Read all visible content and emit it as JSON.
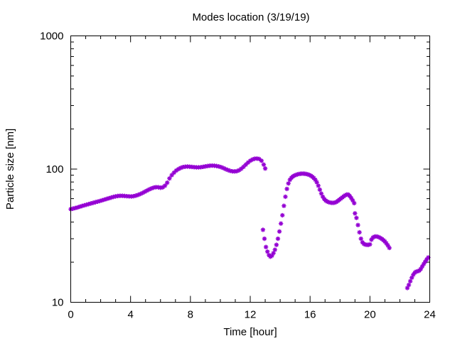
{
  "chart_data": {
    "type": "scatter",
    "title": "Modes location (3/19/19)",
    "xlabel": "Time [hour]",
    "ylabel": "Particle size [nm]",
    "xlim": [
      0,
      24
    ],
    "ylim": [
      10,
      1000
    ],
    "yscale": "log",
    "x_ticks": [
      "0",
      "4",
      "8",
      "12",
      "16",
      "20",
      "24"
    ],
    "y_ticks": [
      "10",
      "100",
      "1000"
    ],
    "grid": false,
    "legend": "none",
    "marker": "asterisk",
    "color": "#9400d3",
    "points": [
      [
        0.0,
        50
      ],
      [
        0.15,
        50.5
      ],
      [
        0.3,
        51
      ],
      [
        0.45,
        51.5
      ],
      [
        0.6,
        52.2
      ],
      [
        0.75,
        52.8
      ],
      [
        0.9,
        53.4
      ],
      [
        1.05,
        54
      ],
      [
        1.2,
        54.6
      ],
      [
        1.35,
        55.2
      ],
      [
        1.5,
        55.8
      ],
      [
        1.65,
        56.4
      ],
      [
        1.8,
        57
      ],
      [
        1.95,
        57.6
      ],
      [
        2.1,
        58.3
      ],
      [
        2.25,
        59
      ],
      [
        2.4,
        59.7
      ],
      [
        2.55,
        60.4
      ],
      [
        2.7,
        61.1
      ],
      [
        2.85,
        61.8
      ],
      [
        3.0,
        62.4
      ],
      [
        3.15,
        62.8
      ],
      [
        3.3,
        63
      ],
      [
        3.45,
        63
      ],
      [
        3.6,
        62.8
      ],
      [
        3.75,
        62.6
      ],
      [
        3.9,
        62.4
      ],
      [
        4.05,
        62.3
      ],
      [
        4.2,
        62.6
      ],
      [
        4.35,
        63.2
      ],
      [
        4.5,
        64
      ],
      [
        4.65,
        65
      ],
      [
        4.8,
        66.2
      ],
      [
        4.95,
        67.6
      ],
      [
        5.1,
        69
      ],
      [
        5.25,
        70.4
      ],
      [
        5.4,
        71.6
      ],
      [
        5.55,
        72.6
      ],
      [
        5.7,
        73.2
      ],
      [
        5.85,
        73
      ],
      [
        6.0,
        72.4
      ],
      [
        6.15,
        73
      ],
      [
        6.3,
        75
      ],
      [
        6.45,
        79
      ],
      [
        6.6,
        85
      ],
      [
        6.75,
        90
      ],
      [
        6.9,
        94
      ],
      [
        7.05,
        97.5
      ],
      [
        7.2,
        100
      ],
      [
        7.35,
        102
      ],
      [
        7.5,
        103.5
      ],
      [
        7.65,
        104.2
      ],
      [
        7.8,
        104.5
      ],
      [
        7.95,
        104.2
      ],
      [
        8.1,
        103.8
      ],
      [
        8.25,
        103.4
      ],
      [
        8.4,
        103.1
      ],
      [
        8.55,
        103
      ],
      [
        8.7,
        103.3
      ],
      [
        8.85,
        104
      ],
      [
        9.0,
        104.7
      ],
      [
        9.15,
        105.4
      ],
      [
        9.3,
        106
      ],
      [
        9.45,
        106.2
      ],
      [
        9.6,
        106
      ],
      [
        9.75,
        105.4
      ],
      [
        9.9,
        104.6
      ],
      [
        10.05,
        103.4
      ],
      [
        10.2,
        101.8
      ],
      [
        10.35,
        100
      ],
      [
        10.5,
        98.4
      ],
      [
        10.65,
        97
      ],
      [
        10.8,
        96.2
      ],
      [
        10.95,
        96
      ],
      [
        11.1,
        96.5
      ],
      [
        11.25,
        98
      ],
      [
        11.4,
        100.6
      ],
      [
        11.55,
        104
      ],
      [
        11.7,
        108
      ],
      [
        11.85,
        112
      ],
      [
        12.0,
        115.5
      ],
      [
        12.15,
        118
      ],
      [
        12.3,
        119.6
      ],
      [
        12.45,
        120
      ],
      [
        12.6,
        119
      ],
      [
        12.75,
        115.5
      ],
      [
        12.9,
        108
      ],
      [
        13.0,
        101
      ],
      [
        12.85,
        35
      ],
      [
        12.95,
        30
      ],
      [
        13.05,
        26
      ],
      [
        13.15,
        24
      ],
      [
        13.25,
        22.6
      ],
      [
        13.35,
        22
      ],
      [
        13.45,
        22.4
      ],
      [
        13.55,
        23.4
      ],
      [
        13.65,
        24.8
      ],
      [
        13.75,
        27
      ],
      [
        13.85,
        30
      ],
      [
        13.95,
        34
      ],
      [
        14.05,
        39
      ],
      [
        14.15,
        45
      ],
      [
        14.25,
        53
      ],
      [
        14.35,
        62
      ],
      [
        14.45,
        71
      ],
      [
        14.55,
        78
      ],
      [
        14.65,
        83
      ],
      [
        14.75,
        86
      ],
      [
        14.85,
        88
      ],
      [
        14.95,
        89.4
      ],
      [
        15.05,
        90.4
      ],
      [
        15.15,
        91.2
      ],
      [
        15.25,
        91.8
      ],
      [
        15.35,
        92.2
      ],
      [
        15.45,
        92.4
      ],
      [
        15.55,
        92.4
      ],
      [
        15.65,
        92.2
      ],
      [
        15.75,
        91.8
      ],
      [
        15.85,
        91.2
      ],
      [
        15.95,
        90.4
      ],
      [
        16.05,
        89.2
      ],
      [
        16.15,
        87.6
      ],
      [
        16.25,
        85.6
      ],
      [
        16.35,
        83
      ],
      [
        16.45,
        79.5
      ],
      [
        16.55,
        75
      ],
      [
        16.65,
        70
      ],
      [
        16.75,
        65.5
      ],
      [
        16.85,
        62
      ],
      [
        16.95,
        59.5
      ],
      [
        17.05,
        58
      ],
      [
        17.15,
        57
      ],
      [
        17.25,
        56.4
      ],
      [
        17.35,
        56
      ],
      [
        17.45,
        55.8
      ],
      [
        17.55,
        55.8
      ],
      [
        17.65,
        56
      ],
      [
        17.75,
        56.6
      ],
      [
        17.85,
        57.6
      ],
      [
        17.95,
        58.8
      ],
      [
        18.05,
        60
      ],
      [
        18.15,
        61.2
      ],
      [
        18.25,
        62.4
      ],
      [
        18.35,
        63.6
      ],
      [
        18.45,
        64.4
      ],
      [
        18.55,
        64.4
      ],
      [
        18.65,
        62.8
      ],
      [
        18.75,
        60.6
      ],
      [
        18.85,
        58.2
      ],
      [
        18.95,
        55.5
      ],
      [
        19.0,
        46.5
      ],
      [
        19.1,
        43
      ],
      [
        19.2,
        38
      ],
      [
        19.3,
        33.5
      ],
      [
        19.4,
        30
      ],
      [
        19.5,
        28.2
      ],
      [
        19.6,
        27.4
      ],
      [
        19.7,
        27.1
      ],
      [
        19.8,
        27
      ],
      [
        19.9,
        27
      ],
      [
        20.0,
        27.2
      ],
      [
        20.1,
        29.5
      ],
      [
        20.2,
        30.6
      ],
      [
        20.3,
        31.1
      ],
      [
        20.4,
        31.2
      ],
      [
        20.5,
        31.1
      ],
      [
        20.6,
        30.8
      ],
      [
        20.7,
        30.4
      ],
      [
        20.8,
        29.9
      ],
      [
        20.9,
        29.3
      ],
      [
        21.0,
        28.6
      ],
      [
        21.1,
        27.7
      ],
      [
        21.2,
        26.7
      ],
      [
        21.3,
        25.6
      ],
      [
        22.5,
        12.8
      ],
      [
        22.6,
        13.5
      ],
      [
        22.7,
        14.4
      ],
      [
        22.8,
        15.3
      ],
      [
        22.9,
        16.1
      ],
      [
        23.0,
        16.7
      ],
      [
        23.1,
        17
      ],
      [
        23.2,
        17.1
      ],
      [
        23.3,
        17.3
      ],
      [
        23.4,
        17.8
      ],
      [
        23.5,
        18.6
      ],
      [
        23.6,
        19.4
      ],
      [
        23.7,
        20.2
      ],
      [
        23.8,
        21
      ],
      [
        23.9,
        21.7
      ]
    ]
  }
}
